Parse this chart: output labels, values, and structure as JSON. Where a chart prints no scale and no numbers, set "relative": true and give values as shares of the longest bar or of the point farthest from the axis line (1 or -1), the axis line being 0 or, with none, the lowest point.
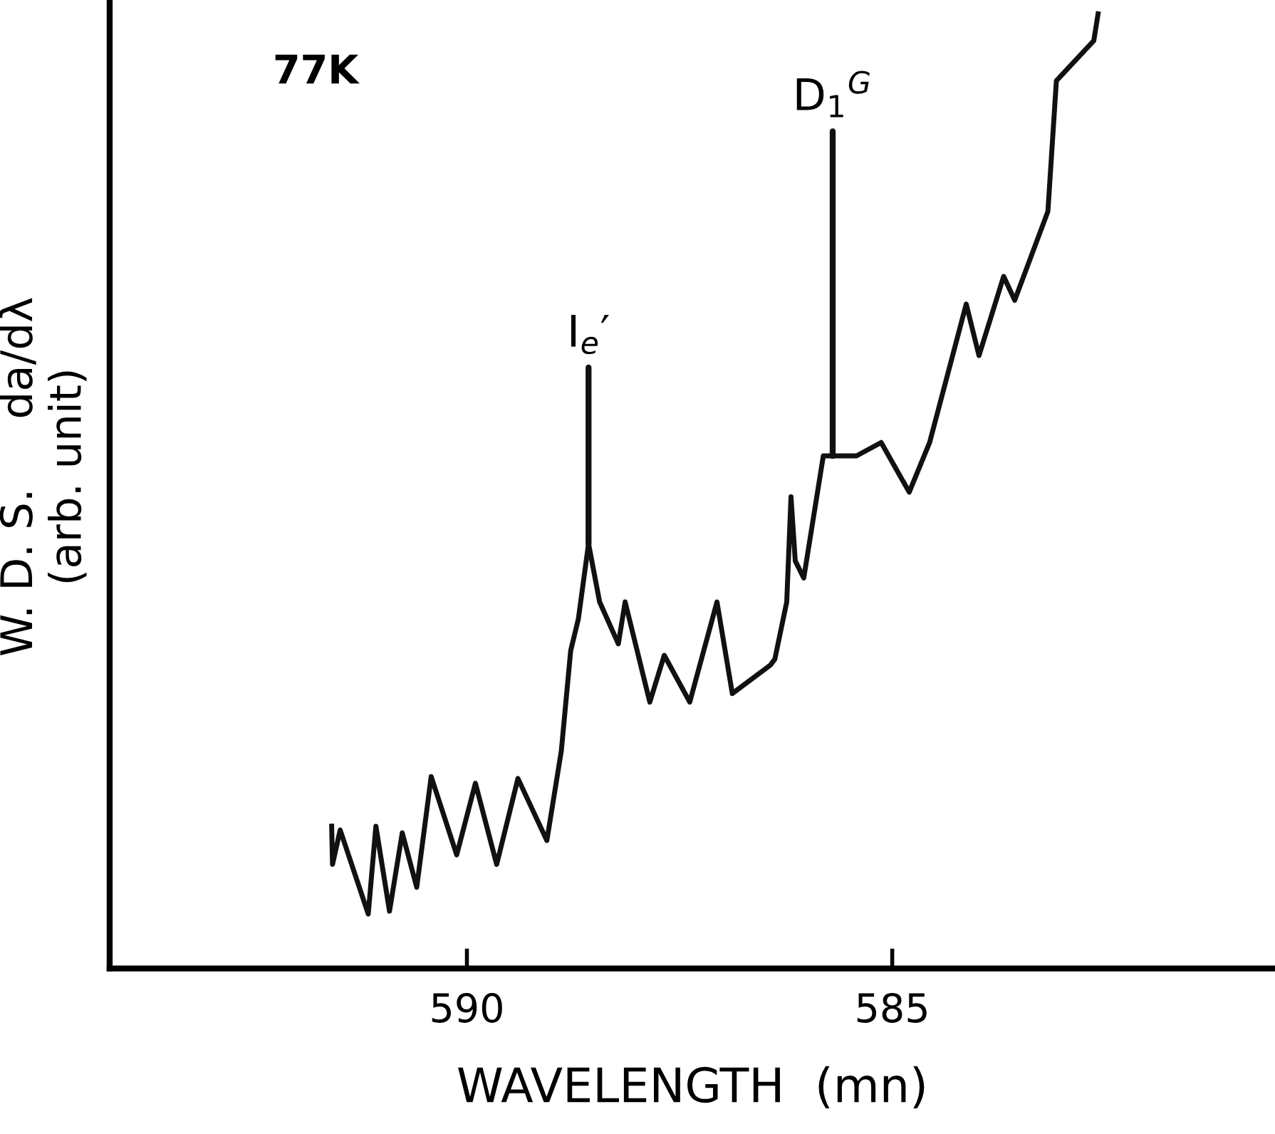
{
  "chart_data": {
    "type": "line",
    "relative": true,
    "xlabel": "WAVELENGTH  (mn)",
    "ylabel": "W. D. S.     da/dλ\n(arb. unit)",
    "xlim": [
      594.2,
      580.5
    ],
    "xticks": [
      590,
      585
    ],
    "grid": false,
    "legend": false,
    "marker": "none",
    "line_style": "solid",
    "annotations": [
      "77K",
      {
        "text": "I$_{e}$′",
        "x": 588.57,
        "y": 0.445
      },
      {
        "text": "D$_{1}$$^{G}$",
        "x": 585.7,
        "y": 0.537
      }
    ],
    "series": [
      {
        "color": "#111111",
        "x": [
          591.59,
          591.58,
          591.49,
          591.16,
          591.07,
          590.91,
          590.76,
          590.59,
          590.42,
          590.12,
          589.9,
          589.65,
          589.4,
          589.06,
          588.89,
          588.78,
          588.69,
          588.57,
          588.44,
          588.22,
          588.14,
          587.85,
          587.68,
          587.38,
          587.06,
          586.88,
          586.43,
          586.38,
          586.24,
          586.19,
          586.14,
          586.04,
          585.81,
          585.42,
          585.13,
          584.8,
          584.56,
          584.13,
          583.98,
          583.69,
          583.56,
          583.17,
          583.07,
          582.63,
          582.58
        ],
        "values": [
          0.149,
          0.109,
          0.145,
          0.057,
          0.149,
          0.06,
          0.142,
          0.085,
          0.201,
          0.119,
          0.194,
          0.109,
          0.199,
          0.134,
          0.228,
          0.333,
          0.366,
          0.445,
          0.384,
          0.34,
          0.384,
          0.279,
          0.328,
          0.279,
          0.384,
          0.288,
          0.318,
          0.324,
          0.384,
          0.494,
          0.427,
          0.409,
          0.537,
          0.537,
          0.551,
          0.499,
          0.551,
          0.696,
          0.642,
          0.725,
          0.7,
          0.793,
          0.93,
          0.972,
          1.0
        ]
      }
    ]
  }
}
